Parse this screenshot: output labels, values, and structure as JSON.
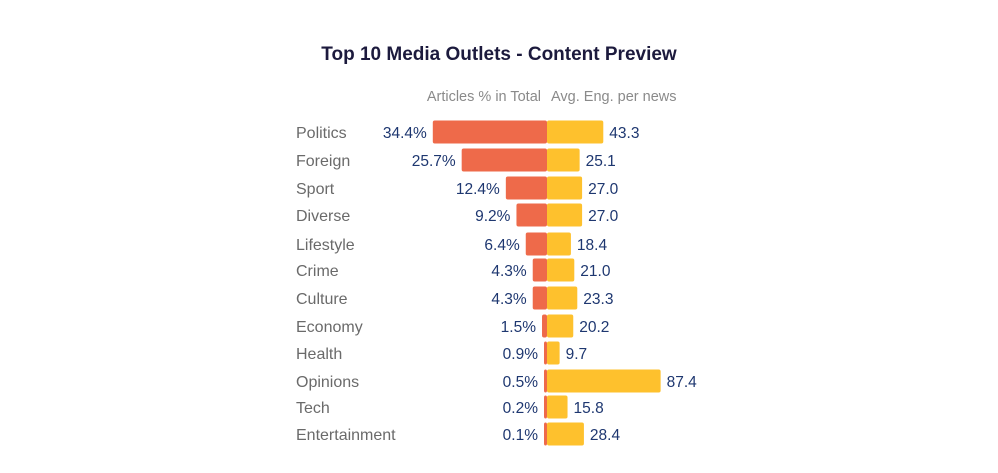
{
  "chart_data": {
    "type": "bar",
    "title": "Top 10 Media Outlets - Content Preview",
    "left_header": "Articles % in Total",
    "right_header": "Avg. Eng. per news",
    "categories": [
      "Politics",
      "Foreign",
      "Sport",
      "Diverse",
      "Lifestyle",
      "Crime",
      "Culture",
      "Economy",
      "Health",
      "Opinions",
      "Tech",
      "Entertainment"
    ],
    "series": [
      {
        "name": "Articles % in Total",
        "values": [
          34.4,
          25.7,
          12.4,
          9.2,
          6.4,
          4.3,
          4.3,
          1.5,
          0.9,
          0.5,
          0.2,
          0.1
        ],
        "labels": [
          "34.4%",
          "25.7%",
          "12.4%",
          "9.2%",
          "6.4%",
          "4.3%",
          "4.3%",
          "1.5%",
          "0.9%",
          "0.5%",
          "0.2%",
          "0.1%"
        ],
        "color": "#ee6a4a"
      },
      {
        "name": "Avg. Eng. per news",
        "values": [
          43.3,
          25.1,
          27.0,
          27.0,
          18.4,
          21.0,
          23.3,
          20.2,
          9.7,
          87.4,
          15.8,
          28.4
        ],
        "labels": [
          "43.3",
          "25.1",
          "27.0",
          "27.0",
          "18.4",
          "21.0",
          "23.3",
          "20.2",
          "9.7",
          "87.4",
          "15.8",
          "28.4"
        ],
        "color": "#fec12d"
      }
    ]
  }
}
